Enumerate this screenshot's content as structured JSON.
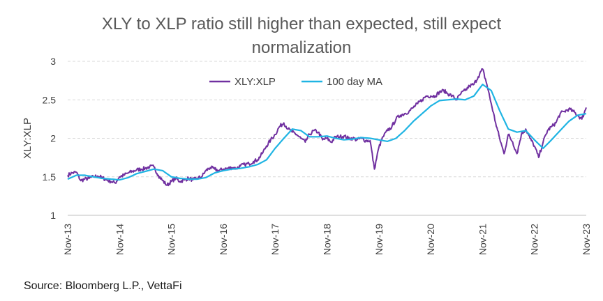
{
  "title_line1": "XLY to XLP ratio still higher than expected, still expect",
  "title_line2": "normalization",
  "source": "Source: Bloomberg L.P., VettaFi",
  "colors": {
    "ratio": "#7030a0",
    "ma": "#1fb4e3",
    "grid": "#d9d9d9"
  },
  "chart_data": {
    "type": "line",
    "ylabel": "XLY:XLP",
    "ylim": [
      1,
      3
    ],
    "yticks": [
      "1",
      "1.5",
      "2",
      "2.5",
      "3"
    ],
    "xticks": [
      "Nov-13",
      "Nov-14",
      "Nov-15",
      "Nov-16",
      "Nov-17",
      "Nov-18",
      "Nov-19",
      "Nov-20",
      "Nov-21",
      "Nov-22",
      "Nov-23"
    ],
    "grid": true,
    "legend_position": "top-center",
    "series": [
      {
        "name": "XLY:XLP",
        "x": [
          "2013-11",
          "2013-12",
          "2014-01",
          "2014-02",
          "2014-03",
          "2014-04",
          "2014-05",
          "2014-06",
          "2014-07",
          "2014-08",
          "2014-09",
          "2014-10",
          "2014-11",
          "2014-12",
          "2015-01",
          "2015-02",
          "2015-03",
          "2015-04",
          "2015-05",
          "2015-06",
          "2015-07",
          "2015-08",
          "2015-09",
          "2015-10",
          "2015-11",
          "2015-12",
          "2016-01",
          "2016-02",
          "2016-03",
          "2016-04",
          "2016-05",
          "2016-06",
          "2016-07",
          "2016-08",
          "2016-09",
          "2016-10",
          "2016-11",
          "2016-12",
          "2017-01",
          "2017-02",
          "2017-03",
          "2017-04",
          "2017-05",
          "2017-06",
          "2017-07",
          "2017-08",
          "2017-09",
          "2017-10",
          "2017-11",
          "2017-12",
          "2018-01",
          "2018-02",
          "2018-03",
          "2018-04",
          "2018-05",
          "2018-06",
          "2018-07",
          "2018-08",
          "2018-09",
          "2018-10",
          "2018-11",
          "2018-12",
          "2019-01",
          "2019-02",
          "2019-03",
          "2019-04",
          "2019-05",
          "2019-06",
          "2019-07",
          "2019-08",
          "2019-09",
          "2019-10",
          "2019-11",
          "2019-12",
          "2020-01",
          "2020-02",
          "2020-03",
          "2020-04",
          "2020-05",
          "2020-06",
          "2020-07",
          "2020-08",
          "2020-09",
          "2020-10",
          "2020-11",
          "2020-12",
          "2021-01",
          "2021-02",
          "2021-03",
          "2021-04",
          "2021-05",
          "2021-06",
          "2021-07",
          "2021-08",
          "2021-09",
          "2021-10",
          "2021-11",
          "2021-12",
          "2022-01",
          "2022-02",
          "2022-03",
          "2022-04",
          "2022-05",
          "2022-06",
          "2022-07",
          "2022-08",
          "2022-09",
          "2022-10",
          "2022-11",
          "2022-12",
          "2023-01",
          "2023-02",
          "2023-03",
          "2023-04",
          "2023-05",
          "2023-06",
          "2023-07",
          "2023-08",
          "2023-09",
          "2023-10",
          "2023-11"
        ],
        "values": [
          1.52,
          1.55,
          1.56,
          1.45,
          1.47,
          1.48,
          1.5,
          1.51,
          1.49,
          1.46,
          1.44,
          1.42,
          1.5,
          1.52,
          1.55,
          1.57,
          1.59,
          1.6,
          1.61,
          1.63,
          1.63,
          1.52,
          1.45,
          1.39,
          1.44,
          1.48,
          1.44,
          1.46,
          1.48,
          1.46,
          1.48,
          1.5,
          1.58,
          1.62,
          1.6,
          1.58,
          1.6,
          1.61,
          1.62,
          1.61,
          1.64,
          1.66,
          1.67,
          1.7,
          1.72,
          1.8,
          1.9,
          1.98,
          2.05,
          2.15,
          2.2,
          2.12,
          2.08,
          2.05,
          2.0,
          1.95,
          2.05,
          2.1,
          2.08,
          1.98,
          2.0,
          1.95,
          2.02,
          2.02,
          2.03,
          2.0,
          2.0,
          1.98,
          2.0,
          1.97,
          1.97,
          1.6,
          1.88,
          2.02,
          2.1,
          2.15,
          2.25,
          2.3,
          2.32,
          2.35,
          2.4,
          2.45,
          2.5,
          2.55,
          2.55,
          2.55,
          2.6,
          2.62,
          2.58,
          2.55,
          2.5,
          2.58,
          2.62,
          2.68,
          2.7,
          2.8,
          2.9,
          2.7,
          2.45,
          2.2,
          2.0,
          1.8,
          2.05,
          1.95,
          1.8,
          2.05,
          2.12,
          2.0,
          1.9,
          1.75,
          1.95,
          2.1,
          2.15,
          2.2,
          2.32,
          2.35,
          2.38,
          2.35,
          2.3,
          2.25,
          2.4
        ]
      },
      {
        "name": "100 day MA",
        "x": [
          "2013-11",
          "2014-01",
          "2014-03",
          "2014-05",
          "2014-07",
          "2014-09",
          "2014-11",
          "2015-01",
          "2015-03",
          "2015-05",
          "2015-07",
          "2015-09",
          "2015-11",
          "2016-01",
          "2016-03",
          "2016-05",
          "2016-07",
          "2016-09",
          "2016-11",
          "2017-01",
          "2017-03",
          "2017-05",
          "2017-07",
          "2017-09",
          "2017-11",
          "2018-01",
          "2018-03",
          "2018-05",
          "2018-07",
          "2018-09",
          "2018-11",
          "2019-01",
          "2019-03",
          "2019-05",
          "2019-07",
          "2019-09",
          "2019-11",
          "2020-01",
          "2020-03",
          "2020-05",
          "2020-07",
          "2020-09",
          "2020-11",
          "2021-01",
          "2021-03",
          "2021-05",
          "2021-07",
          "2021-09",
          "2021-11",
          "2022-01",
          "2022-03",
          "2022-05",
          "2022-07",
          "2022-09",
          "2022-11",
          "2023-01",
          "2023-03",
          "2023-05",
          "2023-07",
          "2023-09",
          "2023-11"
        ],
        "values": [
          1.47,
          1.52,
          1.52,
          1.5,
          1.48,
          1.47,
          1.46,
          1.49,
          1.54,
          1.57,
          1.6,
          1.58,
          1.5,
          1.48,
          1.47,
          1.47,
          1.49,
          1.55,
          1.58,
          1.6,
          1.61,
          1.63,
          1.66,
          1.72,
          1.87,
          2.0,
          2.12,
          2.1,
          2.02,
          2.02,
          2.03,
          2.0,
          1.98,
          1.99,
          2.01,
          2.0,
          1.98,
          1.96,
          2.0,
          2.1,
          2.22,
          2.32,
          2.42,
          2.49,
          2.5,
          2.51,
          2.5,
          2.55,
          2.7,
          2.62,
          2.36,
          2.12,
          2.08,
          2.1,
          1.98,
          1.87,
          1.98,
          2.1,
          2.22,
          2.3,
          2.32
        ]
      }
    ]
  }
}
